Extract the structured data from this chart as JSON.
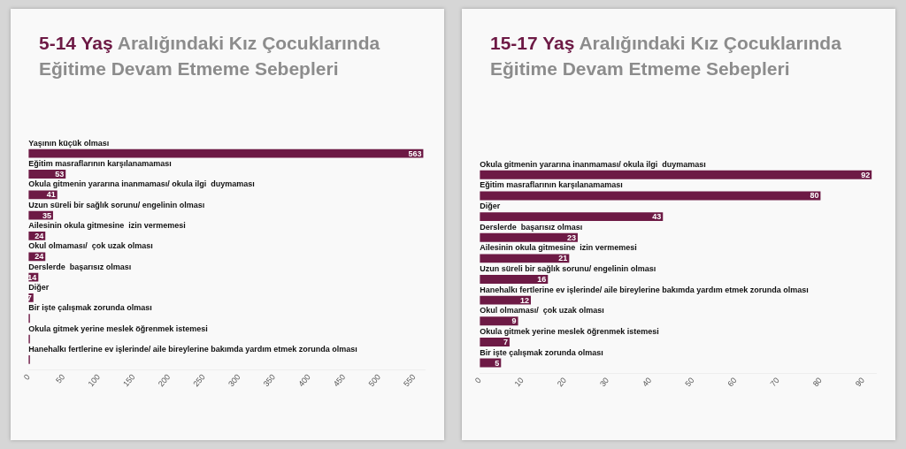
{
  "chart_data": [
    {
      "type": "bar",
      "orientation": "horizontal",
      "title": "5-14 Yaş Aralığındaki Kız Çocuklarında Eğitime Devam Etmeme Sebepleri",
      "categories": [
        "Yaşının küçük olması",
        "Eğitim masraflarının karşılanamaması",
        "Okula gitmenin yararına inanmaması/ okula ilgi  duymaması",
        "Uzun süreli bir sağlık sorunu/ engelinin olması",
        "Ailesinin okula gitmesine  izin vermemesi",
        "Okul olmaması/  çok uzak olması",
        "Derslerde  başarısız olması",
        "Diğer",
        "Bir işte çalışmak zorunda olması",
        "Okula gitmek yerine meslek öğrenmek istemesi",
        "Hanehalkı fertlerine ev işlerinde/ aile bireylerine bakımda yardım etmek zorunda olması"
      ],
      "values": [
        563,
        53,
        41,
        35,
        24,
        24,
        14,
        7,
        2,
        2,
        2
      ],
      "value_labels": [
        "563",
        "53",
        "41",
        "35",
        "24",
        "24",
        "14",
        "7",
        null,
        null,
        null
      ],
      "color": "#6d1a45",
      "xlim": [
        0,
        565
      ],
      "xticks": [
        0,
        50,
        100,
        150,
        200,
        250,
        300,
        350,
        400,
        450,
        500,
        550
      ],
      "grid": false,
      "legend": false
    },
    {
      "type": "bar",
      "orientation": "horizontal",
      "title": "15-17 Yaş Aralığındaki Kız Çocuklarında Eğitime Devam Etmeme Sebepleri",
      "categories": [
        "Okula gitmenin yararına inanmaması/ okula ilgi  duymaması",
        "Eğitim masraflarının karşılanamaması",
        "Diğer",
        "Derslerde  başarısız olması",
        "Ailesinin okula gitmesine  izin vermemesi",
        "Uzun süreli bir sağlık sorunu/ engelinin olması",
        "Hanehalkı fertlerine ev işlerinde/ aile bireylerine bakımda yardım etmek zorunda olması",
        "Okul olmaması/  çok uzak olması",
        "Okula gitmek yerine meslek öğrenmek istemesi",
        "Bir işte çalışmak zorunda olması"
      ],
      "values": [
        92,
        80,
        43,
        23,
        21,
        16,
        12,
        9,
        7,
        5
      ],
      "data_labels": true,
      "color": "#6d1a45",
      "xlim": [
        0,
        93
      ],
      "xticks": [
        0,
        10,
        20,
        30,
        40,
        50,
        60,
        70,
        80,
        90
      ],
      "grid": false,
      "legend": false
    }
  ]
}
